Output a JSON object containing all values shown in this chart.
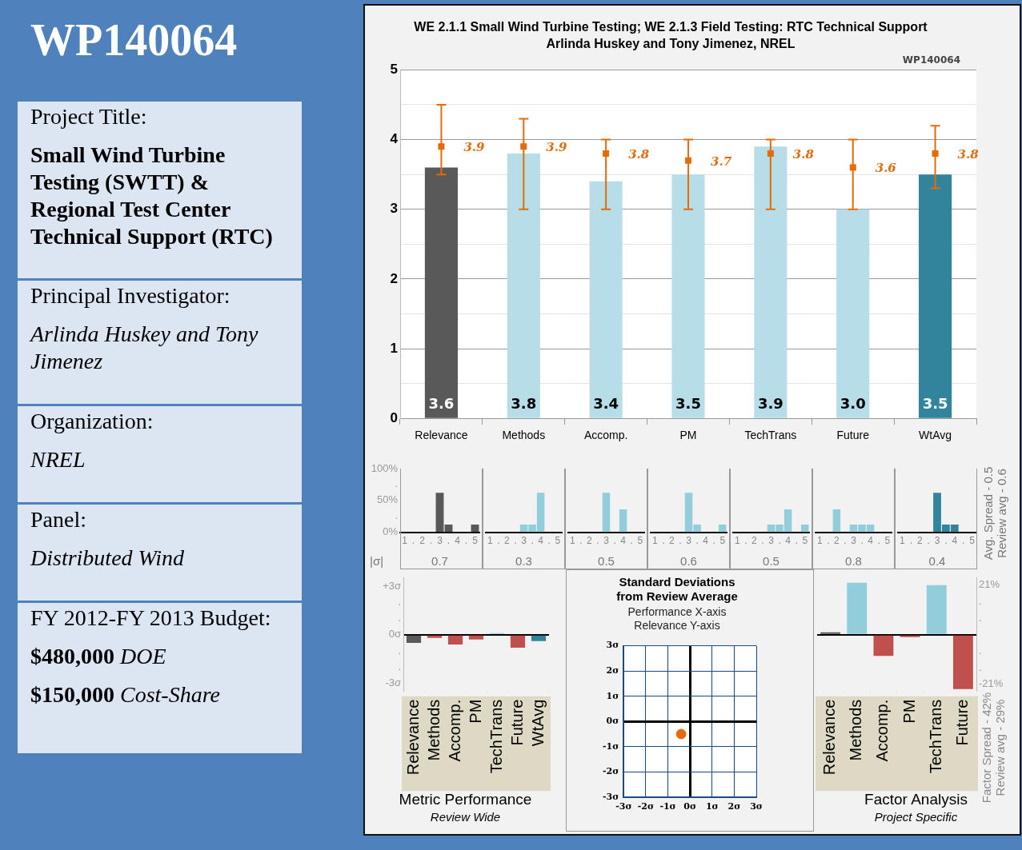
{
  "chart_data": [
    {
      "type": "other",
      "title": "WP140064",
      "annotations": [
        "Project Title:",
        "Small Wind Turbine Testing (SWTT) & Regional Test Center Technical Support (RTC)",
        "Principal Investigator:",
        "Arlinda Huskey and Tony Jimenez",
        "Organization:",
        "NREL",
        "Panel:",
        "Distributed Wind",
        "FY 2012-FY 2013 Budget:",
        "$480,000",
        "DOE",
        "$150,000",
        "Cost-Share"
      ]
    },
    {
      "type": "bar",
      "title": "WE 2.1.1 Small Wind Turbine Testing; WE 2.1.3 Field Testing: RTC Technical Support",
      "subtitle": "Arlinda Huskey and Tony Jimenez, NREL",
      "annotations": [
        "WP140064"
      ],
      "categories": [
        "Relevance",
        "Methods",
        "Accomp.",
        "PM",
        "TechTrans",
        "Future",
        "WtAvg"
      ],
      "ylim": [
        0,
        5
      ],
      "yticks": [
        0,
        {
          "value": 0.5,
          "label": null
        },
        1,
        {
          "value": 1.5,
          "label": null
        },
        2,
        {
          "value": 2.5,
          "label": null
        },
        3,
        {
          "value": 3.5,
          "label": null
        },
        4,
        {
          "value": 4.5,
          "label": null
        },
        5
      ],
      "grid": "y",
      "series": [
        {
          "type": "bar",
          "colors": [
            "#595959",
            "#b7dde8",
            "#b7dde8",
            "#b7dde8",
            "#b7dde8",
            "#b7dde8",
            "#31849b"
          ],
          "values": [
            3.6,
            3.8,
            3.4,
            3.5,
            3.9,
            3.0,
            3.5
          ],
          "value_labels": [
            "3.6",
            "3.8",
            "3.4",
            "3.5",
            "3.9",
            "3.0",
            "3.5"
          ]
        },
        {
          "type": "scatter",
          "color": "#e36c09",
          "marker": "square",
          "values": [
            3.9,
            3.9,
            3.8,
            3.7,
            3.8,
            3.6,
            3.8
          ],
          "value_labels": [
            "3.9",
            "3.9",
            "3.8",
            "3.7",
            "3.8",
            "3.6",
            "3.8"
          ],
          "errors": [
            [
              3.5,
              4.5
            ],
            [
              3.0,
              4.3
            ],
            [
              3.0,
              4.0
            ],
            [
              3.0,
              4.0
            ],
            [
              3.0,
              4.0
            ],
            [
              3.0,
              4.0
            ],
            [
              3.3,
              4.2
            ]
          ]
        }
      ]
    },
    {
      "type": "bar",
      "categories": [
        "1",
        ".",
        "2",
        ".",
        "3",
        ".",
        "4",
        ".",
        "5"
      ],
      "values": [
        0,
        0,
        0,
        0,
        62,
        12,
        0,
        0,
        12
      ],
      "color": "#595959",
      "ylim": [
        0,
        100
      ],
      "yticks": [
        {
          "value": 0,
          "label": "0%"
        },
        {
          "value": 25,
          "label": "."
        },
        {
          "value": 50,
          "label": "50%"
        },
        {
          "value": 75,
          "label": "."
        },
        {
          "value": 100,
          "label": "100%"
        }
      ],
      "annotations": [
        "0.7",
        "|σ|"
      ]
    },
    {
      "type": "bar",
      "categories": [
        "1",
        ".",
        "2",
        ".",
        "3",
        ".",
        "4",
        ".",
        "5"
      ],
      "values": [
        0,
        0,
        0,
        0,
        12,
        12,
        62,
        0,
        0
      ],
      "color": "#92cddc",
      "ylim": [
        0,
        100
      ],
      "tick_labels": "x",
      "annotations": [
        "0.3"
      ]
    },
    {
      "type": "bar",
      "categories": [
        "1",
        ".",
        "2",
        ".",
        "3",
        ".",
        "4",
        ".",
        "5"
      ],
      "values": [
        0,
        0,
        0,
        0,
        62,
        0,
        36,
        0,
        0
      ],
      "color": "#92cddc",
      "ylim": [
        0,
        100
      ],
      "tick_labels": "x",
      "annotations": [
        "0.5"
      ]
    },
    {
      "type": "bar",
      "categories": [
        "1",
        ".",
        "2",
        ".",
        "3",
        ".",
        "4",
        ".",
        "5"
      ],
      "values": [
        0,
        0,
        0,
        0,
        62,
        12,
        0,
        0,
        12
      ],
      "color": "#92cddc",
      "ylim": [
        0,
        100
      ],
      "tick_labels": "x",
      "annotations": [
        "0.6"
      ]
    },
    {
      "type": "bar",
      "categories": [
        "1",
        ".",
        "2",
        ".",
        "3",
        ".",
        "4",
        ".",
        "5"
      ],
      "values": [
        0,
        0,
        0,
        0,
        12,
        12,
        36,
        0,
        12
      ],
      "color": "#92cddc",
      "ylim": [
        0,
        100
      ],
      "tick_labels": "x",
      "annotations": [
        "0.5"
      ]
    },
    {
      "type": "bar",
      "categories": [
        "1",
        ".",
        "2",
        ".",
        "3",
        ".",
        "4",
        ".",
        "5"
      ],
      "values": [
        0,
        0,
        36,
        0,
        12,
        12,
        12,
        0,
        0
      ],
      "color": "#92cddc",
      "ylim": [
        0,
        100
      ],
      "tick_labels": "x",
      "annotations": [
        "0.8"
      ]
    },
    {
      "type": "bar",
      "categories": [
        "1",
        ".",
        "2",
        ".",
        "3",
        ".",
        "4",
        ".",
        "5"
      ],
      "values": [
        0,
        0,
        0,
        0,
        62,
        12,
        12,
        0,
        0
      ],
      "color": "#31849b",
      "ylim": [
        0,
        100
      ],
      "tick_labels": "x",
      "annotations": [
        "0.4",
        "Avg. Spread - 0.5",
        "Review avg - 0.6"
      ]
    },
    {
      "type": "bar",
      "title": "Metric Performance",
      "subtitle": "Review Wide",
      "categories": [
        "Relevance",
        "Methods",
        "Accomp.",
        "PM",
        "TechTrans",
        "Future",
        "WtAvg"
      ],
      "values": [
        -0.5,
        -0.2,
        -0.6,
        -0.3,
        0.1,
        -0.8,
        -0.4
      ],
      "colors": [
        "#595959",
        "#c0504d",
        "#c0504d",
        "#c0504d",
        "#92cddc",
        "#c0504d",
        "#31849b"
      ],
      "ylim": [
        -3.5,
        3.5
      ],
      "yticks": [
        {
          "value": -3,
          "label": "-3σ"
        },
        {
          "value": -2,
          "label": "."
        },
        {
          "value": -1,
          "label": "."
        },
        {
          "value": 0,
          "label": "0σ"
        },
        {
          "value": 1,
          "label": "."
        },
        {
          "value": 2,
          "label": "."
        },
        {
          "value": 3,
          "label": "+3σ"
        }
      ]
    },
    {
      "type": "scatter",
      "title": "Standard Deviations\nfrom Review Average",
      "subtitle": "Performance X-axis\nRelevance Y-axis",
      "x": [
        -0.4
      ],
      "values": [
        -0.5
      ],
      "color": "#e36c09",
      "marker": "circle",
      "grid": true,
      "xlim": [
        -3,
        3
      ],
      "ylim": [
        -3,
        3
      ],
      "xticks": [
        {
          "value": -3,
          "label": "-3σ"
        },
        {
          "value": -2,
          "label": "-2σ"
        },
        {
          "value": -1,
          "label": "-1σ"
        },
        {
          "value": 0,
          "label": "0σ"
        },
        {
          "value": 1,
          "label": "1σ"
        },
        {
          "value": 2,
          "label": "2σ"
        },
        {
          "value": 3,
          "label": "3σ"
        }
      ],
      "yticks": [
        {
          "value": -3,
          "label": "-3σ"
        },
        {
          "value": -2,
          "label": "-2σ"
        },
        {
          "value": -1,
          "label": "-1σ"
        },
        {
          "value": 0,
          "label": "0σ"
        },
        {
          "value": 1,
          "label": "1σ"
        },
        {
          "value": 2,
          "label": "2σ"
        },
        {
          "value": 3,
          "label": "3σ"
        }
      ]
    },
    {
      "type": "bar",
      "title": "Factor Analysis",
      "subtitle": "Project Specific",
      "categories": [
        "Relevance",
        "Methods",
        "Accomp.",
        "PM",
        "TechTrans",
        "Future"
      ],
      "values": [
        1,
        22,
        -9,
        -1,
        21,
        -23
      ],
      "colors": [
        "#595959",
        "#92cddc",
        "#c0504d",
        "#c0504d",
        "#92cddc",
        "#c0504d"
      ],
      "ylim": [
        -24,
        24
      ],
      "yticks": [
        {
          "value": -21,
          "label": "-21%"
        },
        {
          "value": -14,
          "label": "."
        },
        {
          "value": -7,
          "label": "."
        },
        {
          "value": 0,
          "label": null
        },
        {
          "value": 7,
          "label": "."
        },
        {
          "value": 14,
          "label": "."
        },
        {
          "value": 21,
          "label": "21%"
        }
      ],
      "annotations": [
        "Factor Spread - 42%",
        "Review avg - 29%"
      ]
    }
  ]
}
